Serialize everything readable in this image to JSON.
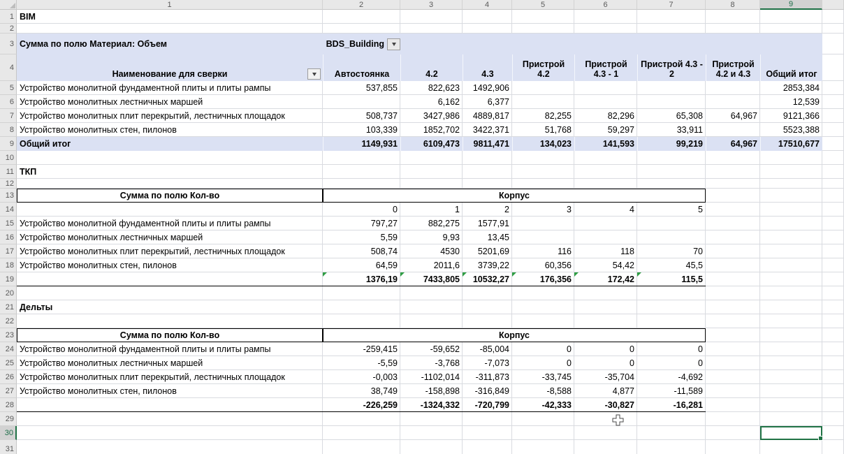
{
  "sheet": {
    "col_headers": [
      "1",
      "2",
      "3",
      "4",
      "5",
      "6",
      "7",
      "8",
      "9",
      ""
    ],
    "row_headers": [
      "1",
      "2",
      "3",
      "4",
      "5",
      "6",
      "7",
      "8",
      "9",
      "10",
      "11",
      "12",
      "13",
      "14",
      "15",
      "16",
      "17",
      "18",
      "19",
      "20",
      "21",
      "22",
      "23",
      "24",
      "25",
      "26",
      "27",
      "28",
      "29",
      "30",
      "31"
    ],
    "selected_col": "9",
    "selected_row": "30"
  },
  "colors": {
    "accent_green": "#217346",
    "pivot_fill": "#dbe1f3",
    "flag_green": "#2f9e44",
    "gridline": "#d9dbe0"
  },
  "bim": {
    "title": "BIM",
    "pivot_label": "Сумма по полю Материал: Объем",
    "filter_value": "BDS_Building",
    "row_header_label": "Наименование для сверки",
    "columns": [
      "Автостоянка",
      "4.2",
      "4.3",
      "Пристрой 4.2",
      "Пристрой 4.3 - 1",
      "Пристрой 4.3 - 2",
      "Пристрой 4.2 и 4.3",
      "Общий итог"
    ],
    "rows": [
      {
        "label": "Устройство монолитной фундаментной плиты и плиты рампы",
        "values": [
          "537,855",
          "822,623",
          "1492,906",
          "",
          "",
          "",
          "",
          "2853,384"
        ]
      },
      {
        "label": "Устройство монолитных лестничных маршей",
        "values": [
          "",
          "6,162",
          "6,377",
          "",
          "",
          "",
          "",
          "12,539"
        ]
      },
      {
        "label": "Устройство монолитных плит перекрытий, лестничных площадок",
        "values": [
          "508,737",
          "3427,986",
          "4889,817",
          "82,255",
          "82,296",
          "65,308",
          "64,967",
          "9121,366"
        ]
      },
      {
        "label": "Устройство монолитных стен, пилонов",
        "values": [
          "103,339",
          "1852,702",
          "3422,371",
          "51,768",
          "59,297",
          "33,911",
          "",
          "5523,388"
        ]
      }
    ],
    "total_label": "Общий итог",
    "totals": [
      "1149,931",
      "6109,473",
      "9811,471",
      "134,023",
      "141,593",
      "99,219",
      "64,967",
      "17510,677"
    ]
  },
  "tkp": {
    "title": "ТКП",
    "pivot_label": "Сумма по полю Кол-во",
    "group_label": "Корпус",
    "columns": [
      "0",
      "1",
      "2",
      "3",
      "4",
      "5"
    ],
    "rows": [
      {
        "label": "Устройство монолитной фундаментной плиты и плиты рампы",
        "values": [
          "797,27",
          "882,275",
          "1577,91",
          "",
          "",
          ""
        ]
      },
      {
        "label": "Устройство монолитных лестничных маршей",
        "values": [
          "5,59",
          "9,93",
          "13,45",
          "",
          "",
          ""
        ]
      },
      {
        "label": "Устройство монолитных плит перекрытий, лестничных площадок",
        "values": [
          "508,74",
          "4530",
          "5201,69",
          "116",
          "118",
          "70"
        ]
      },
      {
        "label": "Устройство монолитных стен, пилонов",
        "values": [
          "64,59",
          "2011,6",
          "3739,22",
          "60,356",
          "54,42",
          "45,5"
        ]
      }
    ],
    "totals": [
      "1376,19",
      "7433,805",
      "10532,27",
      "176,356",
      "172,42",
      "115,5"
    ]
  },
  "delta": {
    "title": "Дельты",
    "pivot_label": "Сумма по полю Кол-во",
    "group_label": "Корпус",
    "rows": [
      {
        "label": "Устройство монолитной фундаментной плиты и плиты рампы",
        "values": [
          "-259,415",
          "-59,652",
          "-85,004",
          "0",
          "0",
          "0"
        ]
      },
      {
        "label": "Устройство монолитных лестничных маршей",
        "values": [
          "-5,59",
          "-3,768",
          "-7,073",
          "0",
          "0",
          "0"
        ]
      },
      {
        "label": "Устройство монолитных плит перекрытий, лестничных площадок",
        "values": [
          "-0,003",
          "-1102,014",
          "-311,873",
          "-33,745",
          "-35,704",
          "-4,692"
        ]
      },
      {
        "label": "Устройство монолитных стен, пилонов",
        "values": [
          "38,749",
          "-158,898",
          "-316,849",
          "-8,588",
          "4,877",
          "-11,589"
        ]
      }
    ],
    "totals": [
      "-226,259",
      "-1324,332",
      "-720,799",
      "-42,333",
      "-30,827",
      "-16,281"
    ]
  }
}
